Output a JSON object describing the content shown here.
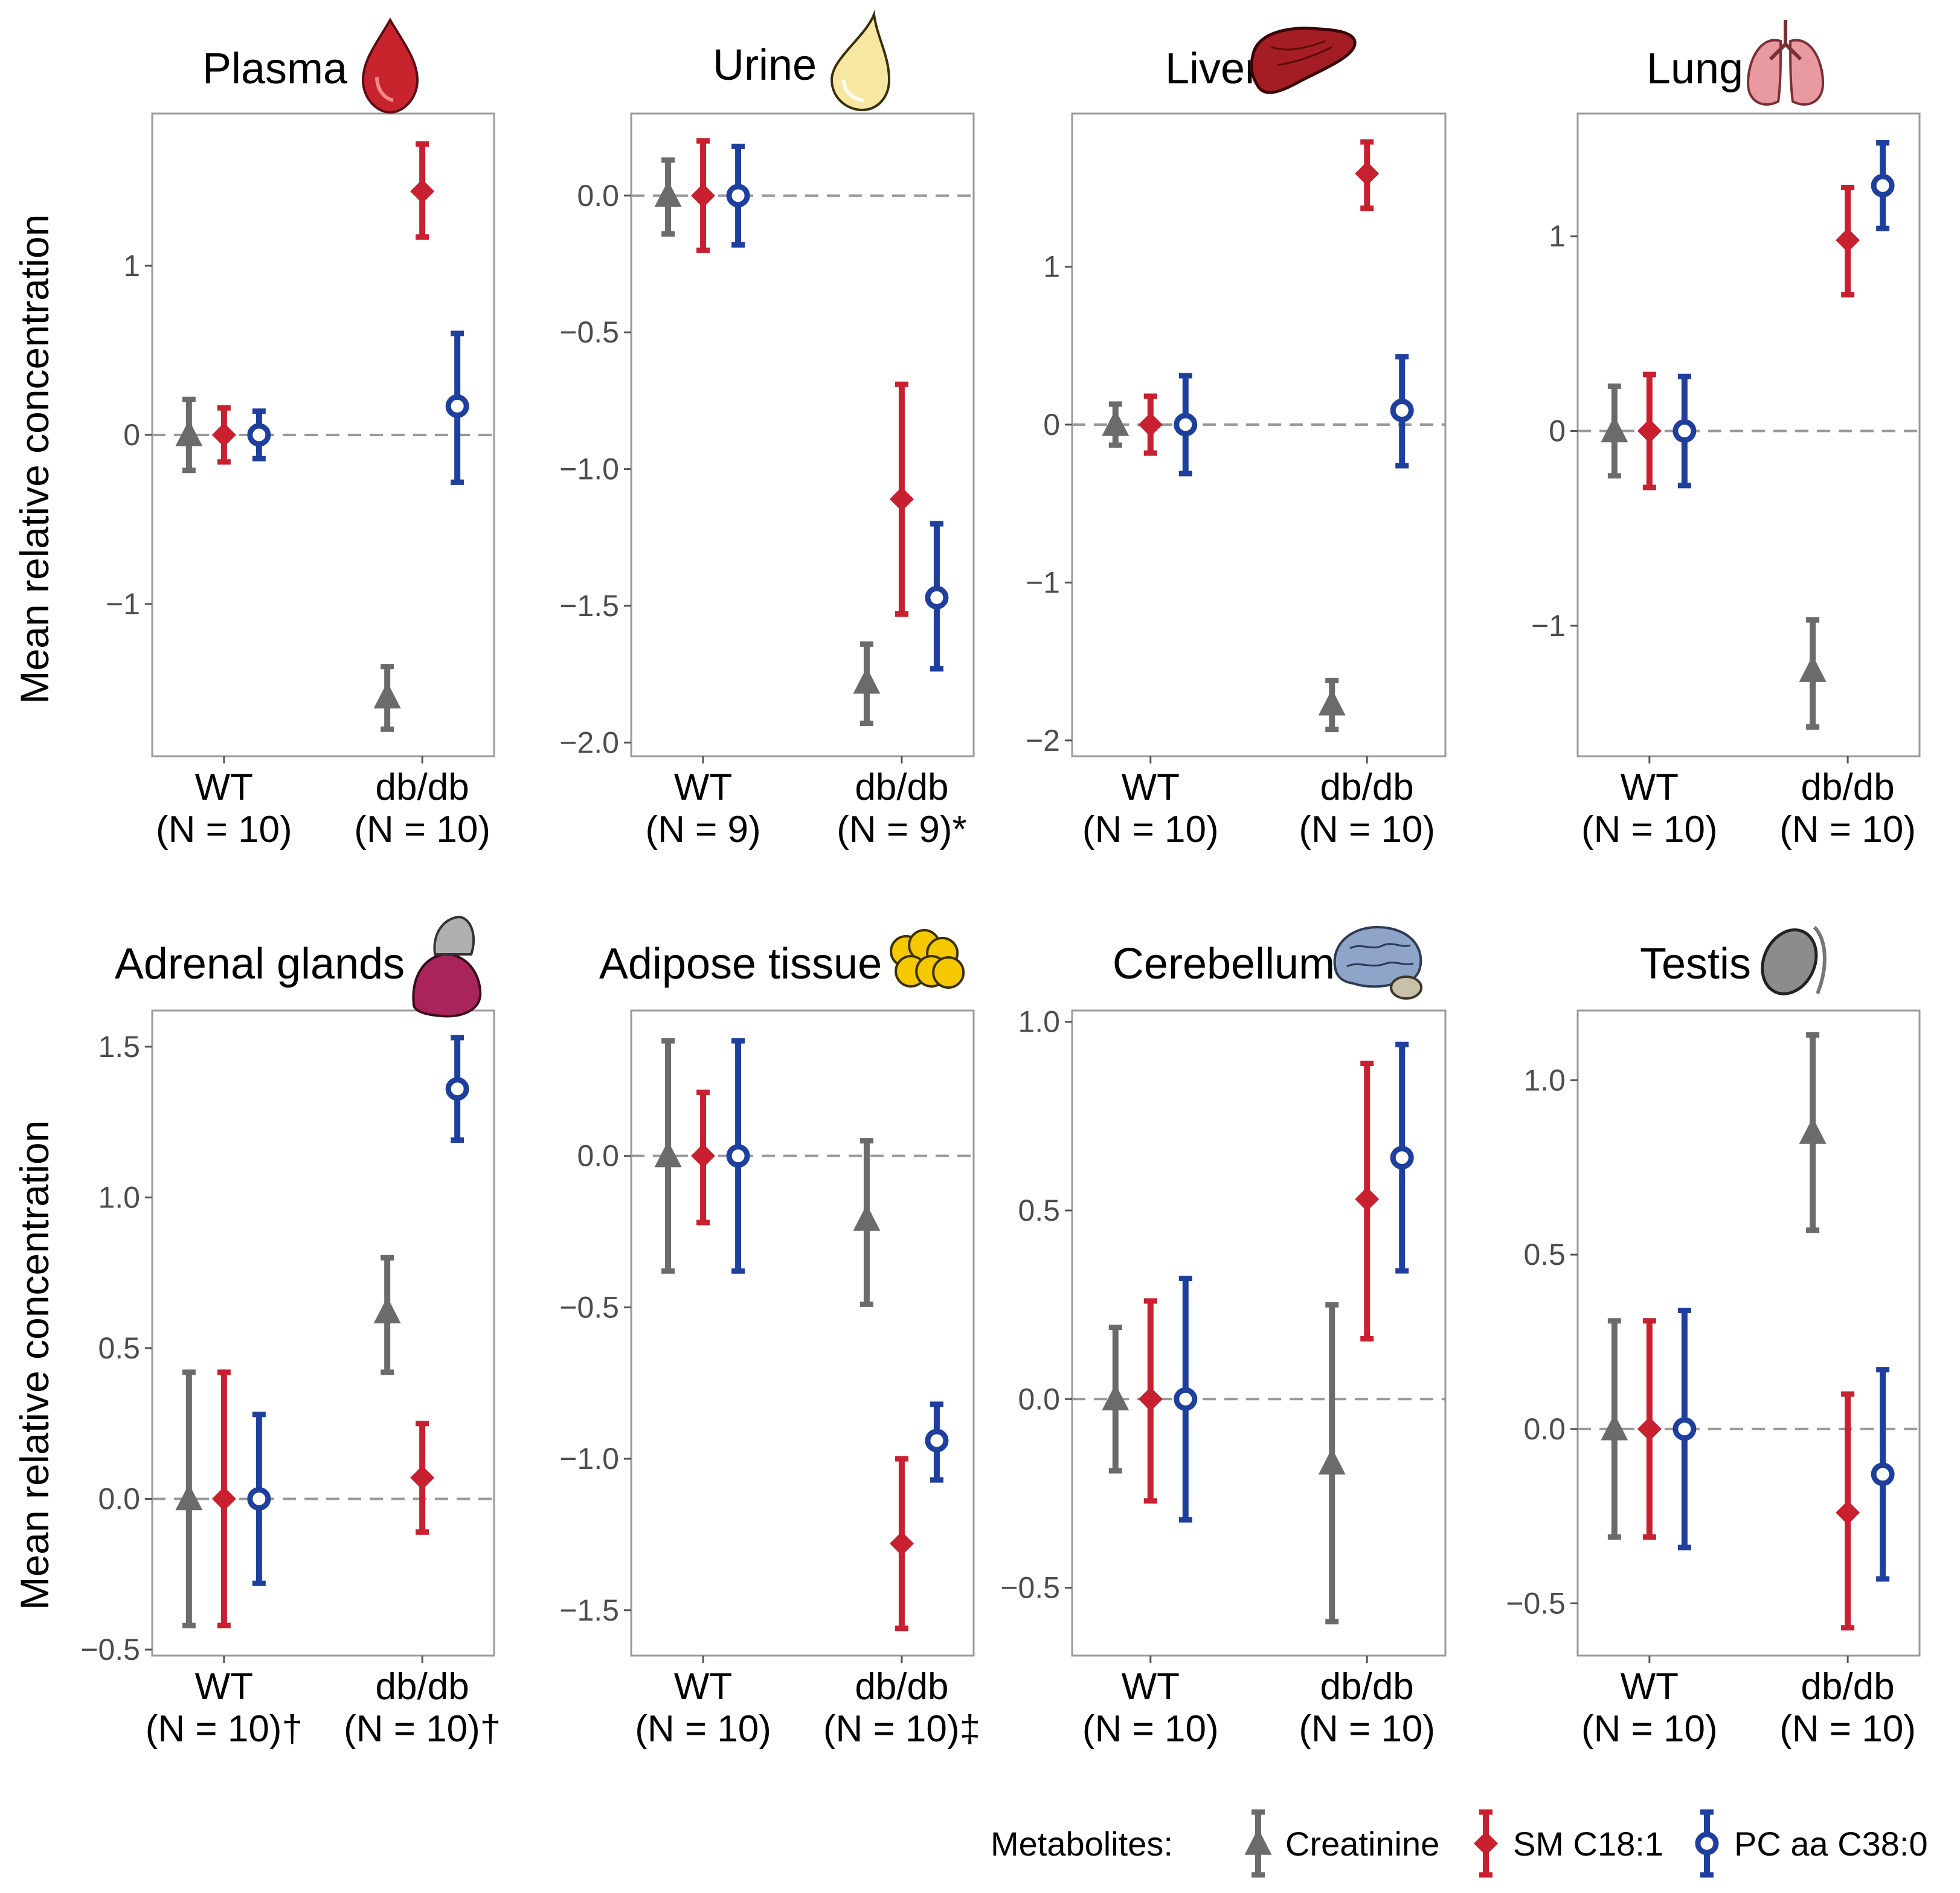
{
  "y_axis_label": "Mean relative concentration",
  "legend": {
    "title": "Metabolites:",
    "items": [
      "Creatinine",
      "SM C18:1",
      "PC aa C38:0"
    ]
  },
  "colors": {
    "creatinine": "#6b6b6b",
    "sm": "#c8202f",
    "pc": "#1f3f9e",
    "dash": "#999999",
    "frame": "#9a9a9a"
  },
  "chart_data": [
    {
      "type": "pointrange",
      "title": "Plasma",
      "icon": "blood-drop-icon",
      "groups": [
        "WT",
        "db/db"
      ],
      "n_labels": [
        "(N = 10)",
        "(N = 10)"
      ],
      "ylim": [
        -1.9,
        1.9
      ],
      "ticks": [
        -1,
        0,
        1
      ],
      "tick_labels": [
        "−1",
        "0",
        "1"
      ],
      "series": [
        {
          "name": "Creatinine",
          "mean": [
            0,
            -1.55
          ],
          "low": [
            -0.21,
            -1.74
          ],
          "high": [
            0.21,
            -1.37
          ]
        },
        {
          "name": "SM C18:1",
          "mean": [
            0,
            1.44
          ],
          "low": [
            -0.16,
            1.17
          ],
          "high": [
            0.16,
            1.72
          ]
        },
        {
          "name": "PC aa C38:0",
          "mean": [
            0,
            0.17
          ],
          "low": [
            -0.14,
            -0.28
          ],
          "high": [
            0.14,
            0.6
          ]
        }
      ]
    },
    {
      "type": "pointrange",
      "title": "Urine",
      "icon": "urine-drop-icon",
      "groups": [
        "WT",
        "db/db"
      ],
      "n_labels": [
        "(N = 9)",
        "(N = 9)*"
      ],
      "ylim": [
        -2.05,
        0.3
      ],
      "ticks": [
        0,
        -0.5,
        -1,
        -1.5,
        -2
      ],
      "tick_labels": [
        "0.0",
        "−0.5",
        "−1.0",
        "−1.5",
        "−2.0"
      ],
      "series": [
        {
          "name": "Creatinine",
          "mean": [
            0,
            -1.78
          ],
          "low": [
            -0.14,
            -1.93
          ],
          "high": [
            0.13,
            -1.64
          ]
        },
        {
          "name": "SM C18:1",
          "mean": [
            0,
            -1.11
          ],
          "low": [
            -0.2,
            -1.53
          ],
          "high": [
            0.2,
            -0.69
          ]
        },
        {
          "name": "PC aa C38:0",
          "mean": [
            0,
            -1.47
          ],
          "low": [
            -0.18,
            -1.73
          ],
          "high": [
            0.18,
            -1.2
          ]
        }
      ]
    },
    {
      "type": "pointrange",
      "title": "Liver",
      "icon": "liver-icon",
      "groups": [
        "WT",
        "db/db"
      ],
      "n_labels": [
        "(N = 10)",
        "(N = 10)"
      ],
      "ylim": [
        -2.1,
        1.97
      ],
      "ticks": [
        1,
        0,
        -1,
        -2
      ],
      "tick_labels": [
        "1",
        "0",
        "−1",
        "−2"
      ],
      "series": [
        {
          "name": "Creatinine",
          "mean": [
            0,
            -1.77
          ],
          "low": [
            -0.13,
            -1.93
          ],
          "high": [
            0.13,
            -1.62
          ]
        },
        {
          "name": "SM C18:1",
          "mean": [
            0,
            1.59
          ],
          "low": [
            -0.18,
            1.37
          ],
          "high": [
            0.18,
            1.79
          ]
        },
        {
          "name": "PC aa C38:0",
          "mean": [
            0,
            0.09
          ],
          "low": [
            -0.31,
            -0.26
          ],
          "high": [
            0.31,
            0.43
          ]
        }
      ]
    },
    {
      "type": "pointrange",
      "title": "Lung",
      "icon": "lungs-icon",
      "groups": [
        "WT",
        "db/db"
      ],
      "n_labels": [
        "(N = 10)",
        "(N = 10)"
      ],
      "ylim": [
        -1.67,
        1.63
      ],
      "ticks": [
        1,
        0,
        -1
      ],
      "tick_labels": [
        "1",
        "0",
        "−1"
      ],
      "series": [
        {
          "name": "Creatinine",
          "mean": [
            0,
            -1.23
          ],
          "low": [
            -0.23,
            -1.52
          ],
          "high": [
            0.23,
            -0.97
          ]
        },
        {
          "name": "SM C18:1",
          "mean": [
            0,
            0.98
          ],
          "low": [
            -0.29,
            0.7
          ],
          "high": [
            0.29,
            1.25
          ]
        },
        {
          "name": "PC aa C38:0",
          "mean": [
            0,
            1.26
          ],
          "low": [
            -0.28,
            1.04
          ],
          "high": [
            0.28,
            1.48
          ]
        }
      ]
    },
    {
      "type": "pointrange",
      "title": "Adrenal glands",
      "icon": "adrenal-gland-icon",
      "groups": [
        "WT",
        "db/db"
      ],
      "n_labels": [
        "(N = 10)†",
        "(N = 10)†"
      ],
      "ylim": [
        -0.52,
        1.62
      ],
      "ticks": [
        1.5,
        1,
        0.5,
        0,
        -0.5
      ],
      "tick_labels": [
        "1.5",
        "1.0",
        "0.5",
        "0.0",
        "−0.5"
      ],
      "series": [
        {
          "name": "Creatinine",
          "mean": [
            0,
            0.62
          ],
          "low": [
            -0.42,
            0.42
          ],
          "high": [
            0.42,
            0.8
          ]
        },
        {
          "name": "SM C18:1",
          "mean": [
            0,
            0.07
          ],
          "low": [
            -0.42,
            -0.11
          ],
          "high": [
            0.42,
            0.25
          ]
        },
        {
          "name": "PC aa C38:0",
          "mean": [
            0,
            1.36
          ],
          "low": [
            -0.28,
            1.19
          ],
          "high": [
            0.28,
            1.53
          ]
        }
      ]
    },
    {
      "type": "pointrange",
      "title": "Adipose tissue",
      "icon": "adipose-cells-icon",
      "groups": [
        "WT",
        "db/db"
      ],
      "n_labels": [
        "(N = 10)",
        "(N = 10)‡"
      ],
      "ylim": [
        -1.65,
        0.48
      ],
      "ticks": [
        0,
        -0.5,
        -1,
        -1.5
      ],
      "tick_labels": [
        "0.0",
        "−0.5",
        "−1.0",
        "−1.5"
      ],
      "series": [
        {
          "name": "Creatinine",
          "mean": [
            0,
            -0.21
          ],
          "low": [
            -0.38,
            -0.49
          ],
          "high": [
            0.38,
            0.05
          ]
        },
        {
          "name": "SM C18:1",
          "mean": [
            0,
            -1.28
          ],
          "low": [
            -0.22,
            -1.56
          ],
          "high": [
            0.21,
            -1.0
          ]
        },
        {
          "name": "PC aa C38:0",
          "mean": [
            0,
            -0.94
          ],
          "low": [
            -0.38,
            -1.07
          ],
          "high": [
            0.38,
            -0.82
          ]
        }
      ]
    },
    {
      "type": "pointrange",
      "title": "Cerebellum",
      "icon": "brain-icon",
      "groups": [
        "WT",
        "db/db"
      ],
      "n_labels": [
        "(N = 10)",
        "(N = 10)"
      ],
      "ylim": [
        -0.68,
        1.03
      ],
      "ticks": [
        1,
        0.5,
        0,
        -0.5
      ],
      "tick_labels": [
        "1.0",
        "0.5",
        "0.0",
        "−0.5"
      ],
      "series": [
        {
          "name": "Creatinine",
          "mean": [
            0,
            -0.17
          ],
          "low": [
            -0.19,
            -0.59
          ],
          "high": [
            0.19,
            0.25
          ]
        },
        {
          "name": "SM C18:1",
          "mean": [
            0,
            0.53
          ],
          "low": [
            -0.27,
            0.16
          ],
          "high": [
            0.26,
            0.89
          ]
        },
        {
          "name": "PC aa C38:0",
          "mean": [
            0,
            0.64
          ],
          "low": [
            -0.32,
            0.34
          ],
          "high": [
            0.32,
            0.94
          ]
        }
      ]
    },
    {
      "type": "pointrange",
      "title": "Testis",
      "icon": "testis-icon",
      "groups": [
        "WT",
        "db/db"
      ],
      "n_labels": [
        "(N = 10)",
        "(N = 10)"
      ],
      "ylim": [
        -0.65,
        1.2
      ],
      "ticks": [
        1,
        0.5,
        0,
        -0.5
      ],
      "tick_labels": [
        "1.0",
        "0.5",
        "0.0",
        "−0.5"
      ],
      "series": [
        {
          "name": "Creatinine",
          "mean": [
            0,
            0.85
          ],
          "low": [
            -0.31,
            0.57
          ],
          "high": [
            0.31,
            1.13
          ]
        },
        {
          "name": "SM C18:1",
          "mean": [
            0,
            -0.24
          ],
          "low": [
            -0.31,
            -0.57
          ],
          "high": [
            0.31,
            0.1
          ]
        },
        {
          "name": "PC aa C38:0",
          "mean": [
            0,
            -0.13
          ],
          "low": [
            -0.34,
            -0.43
          ],
          "high": [
            0.34,
            0.17
          ]
        }
      ]
    }
  ]
}
